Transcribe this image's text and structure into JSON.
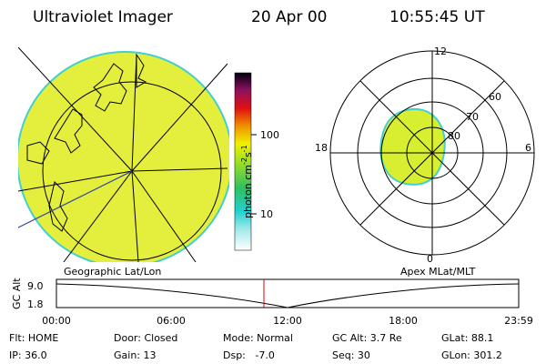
{
  "header": {
    "title": "Ultraviolet Imager",
    "date": "20 Apr 00",
    "time": "10:55:45 UT"
  },
  "colorbar": {
    "label": "photon cm",
    "exp1": "-2",
    "unit2": "s",
    "exp2": "-1",
    "ticks": [
      "100",
      "10"
    ]
  },
  "polar": {
    "mlt_labels": [
      "12",
      "18",
      "6",
      "0"
    ],
    "lat_labels": [
      "60",
      "70",
      "80"
    ]
  },
  "captions": {
    "left": "Geographic Lat/Lon",
    "right": "Apex MLat/MLT"
  },
  "altitude_plot": {
    "axis_label": "GC Alt",
    "y_labels": [
      "9.0",
      "1.8"
    ],
    "x_labels": [
      "00:00",
      "06:00",
      "12:00",
      "18:00",
      "23:59"
    ]
  },
  "info": {
    "rows": [
      [
        "Flt: HOME",
        "Door: Closed",
        "Mode: Normal",
        "GC Alt: 3.7 Re",
        "GLat: 88.1"
      ],
      [
        "IP: 36.0",
        "Gain: 13",
        "Dsp:   -7.0",
        "Seq: 30",
        "GLon: 301.2"
      ]
    ]
  }
}
